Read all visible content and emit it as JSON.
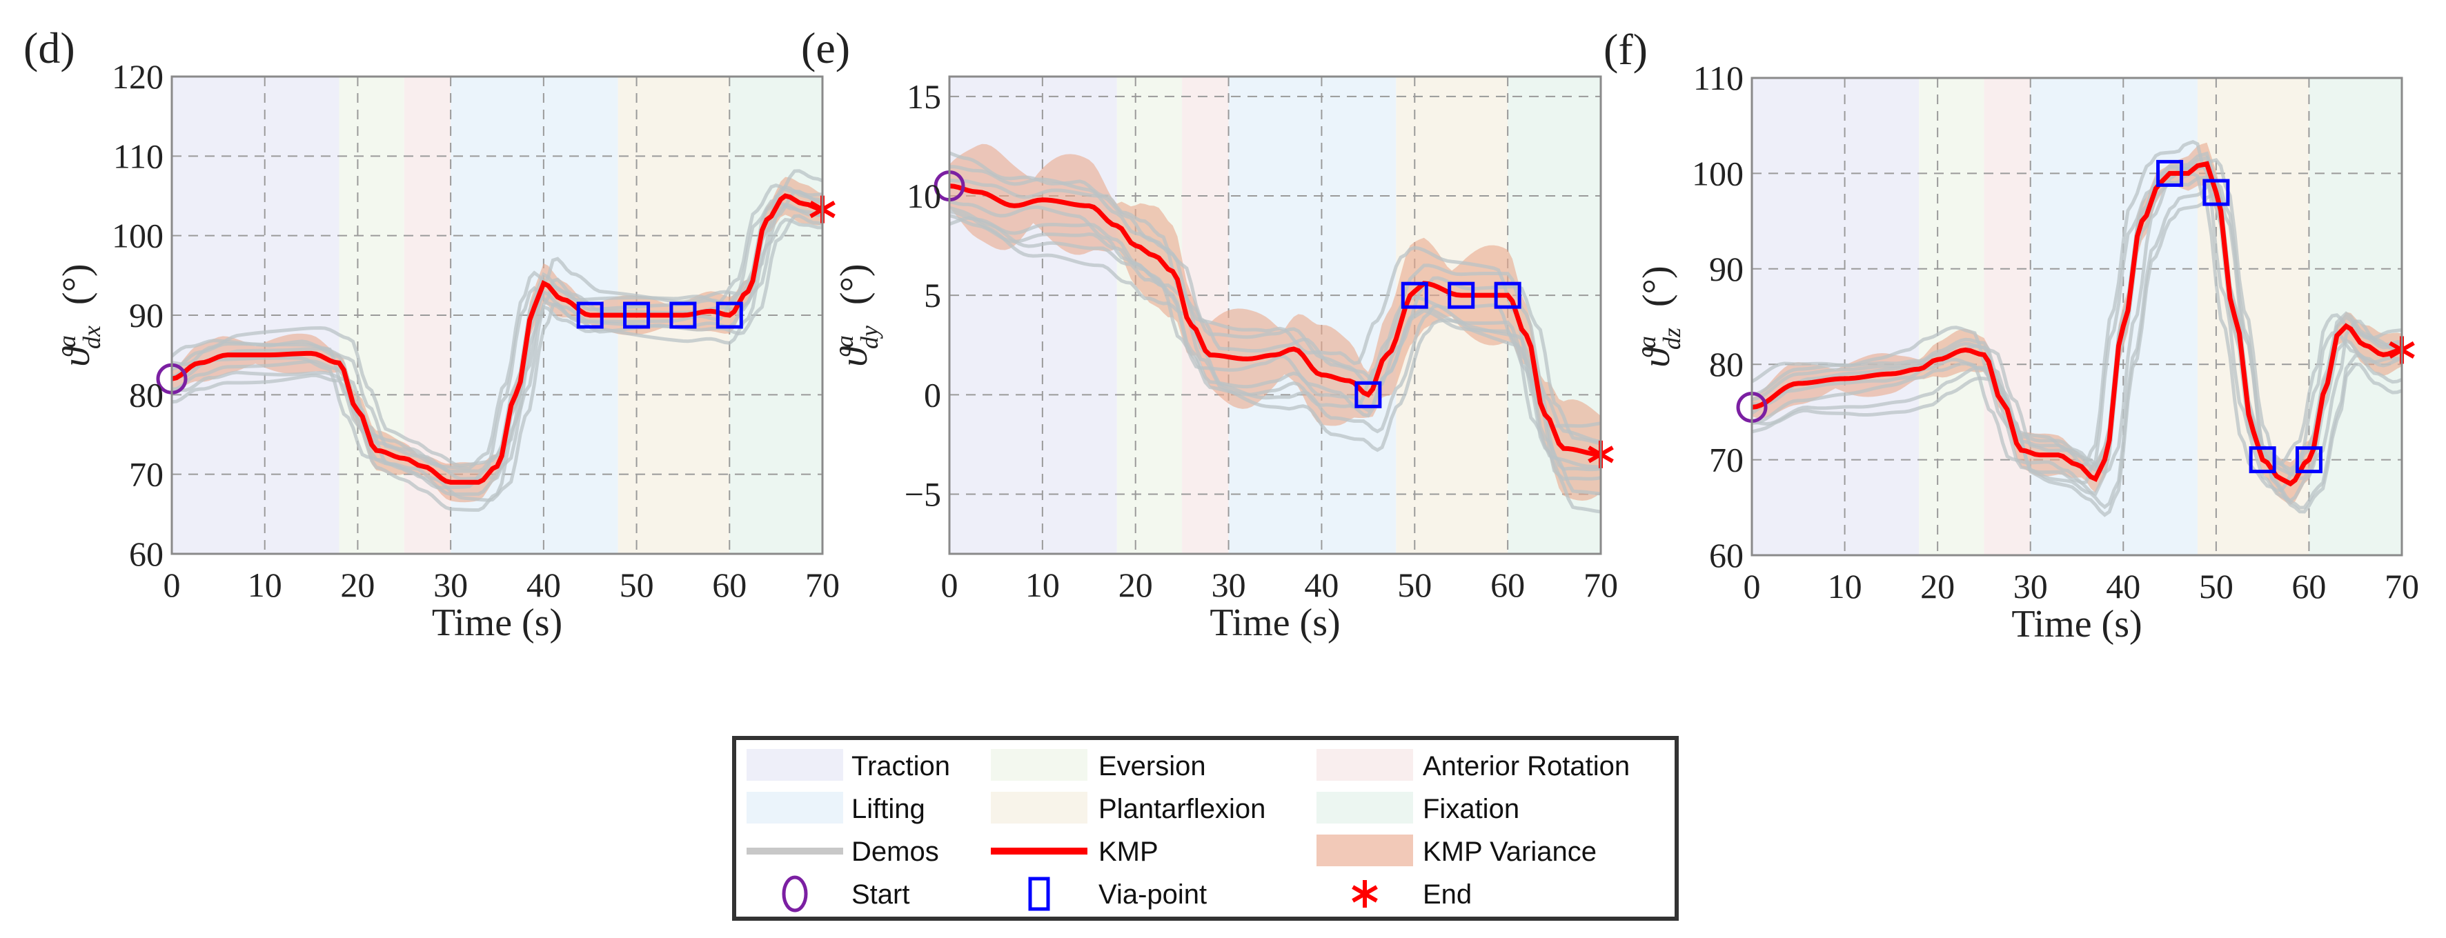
{
  "chart_data": [
    {
      "type": "line",
      "panel_label": "(d)",
      "xlabel": "Time (s)",
      "ylabel": {
        "symbol": "ϑ",
        "sup": "a",
        "sub": "dx",
        "unit": "(°)"
      },
      "xlim": [
        0,
        70
      ],
      "ylim": [
        60,
        120
      ],
      "xticks": [
        0,
        10,
        20,
        30,
        40,
        50,
        60,
        70
      ],
      "yticks": [
        60,
        70,
        80,
        90,
        100,
        110,
        120
      ],
      "grid": true,
      "kmp": [
        [
          0,
          82
        ],
        [
          3,
          84
        ],
        [
          6,
          85
        ],
        [
          10,
          85
        ],
        [
          15,
          85.2
        ],
        [
          18,
          84
        ],
        [
          20,
          78
        ],
        [
          22,
          73
        ],
        [
          25,
          72
        ],
        [
          27,
          71
        ],
        [
          30,
          69
        ],
        [
          33,
          69
        ],
        [
          35,
          71
        ],
        [
          37,
          80
        ],
        [
          39,
          91
        ],
        [
          40,
          94
        ],
        [
          42,
          92
        ],
        [
          45,
          90
        ],
        [
          50,
          90
        ],
        [
          55,
          90
        ],
        [
          58,
          90.5
        ],
        [
          60,
          90
        ],
        [
          62,
          93
        ],
        [
          64,
          102
        ],
        [
          66,
          105
        ],
        [
          68,
          104
        ],
        [
          70,
          103.3
        ]
      ],
      "variance": 1.8,
      "demo_offsets": [
        -2.5,
        -1.5,
        -0.8,
        0.6,
        1.4,
        2.2,
        3.2,
        -3.5
      ],
      "via_points": [
        [
          45,
          90
        ],
        [
          50,
          90
        ],
        [
          55,
          90
        ],
        [
          60,
          90
        ]
      ],
      "start": [
        0,
        82
      ],
      "end": [
        70,
        103.3
      ]
    },
    {
      "type": "line",
      "panel_label": "(e)",
      "xlabel": "Time (s)",
      "ylabel": {
        "symbol": "ϑ",
        "sup": "a",
        "sub": "dy",
        "unit": "(°)"
      },
      "xlim": [
        0,
        70
      ],
      "ylim": [
        -8,
        16
      ],
      "xticks": [
        0,
        10,
        20,
        30,
        40,
        50,
        60,
        70
      ],
      "yticks": [
        -5,
        0,
        5,
        10,
        15
      ],
      "grid": true,
      "kmp": [
        [
          0,
          10.5
        ],
        [
          3,
          10.2
        ],
        [
          7,
          9.5
        ],
        [
          10,
          9.8
        ],
        [
          15,
          9.5
        ],
        [
          18,
          8.5
        ],
        [
          20,
          7.5
        ],
        [
          22,
          7
        ],
        [
          24,
          6.2
        ],
        [
          26,
          3.5
        ],
        [
          28,
          2
        ],
        [
          32,
          1.8
        ],
        [
          35,
          2
        ],
        [
          37,
          2.3
        ],
        [
          40,
          1
        ],
        [
          43,
          0.7
        ],
        [
          45,
          0
        ],
        [
          47,
          2
        ],
        [
          50,
          5.2
        ],
        [
          51,
          5.6
        ],
        [
          55,
          5
        ],
        [
          60,
          5
        ],
        [
          62,
          3
        ],
        [
          64,
          -1
        ],
        [
          66,
          -2.7
        ],
        [
          70,
          -3
        ]
      ],
      "variance": 1.8,
      "demo_offsets": [
        -2.2,
        -1.4,
        -0.7,
        0.5,
        1.1,
        1.8,
        -3.0,
        -1.8
      ],
      "via_points": [
        [
          45,
          0
        ],
        [
          50,
          5
        ],
        [
          55,
          5
        ],
        [
          60,
          5
        ]
      ],
      "start": [
        0,
        10.5
      ],
      "end": [
        70,
        -3
      ]
    },
    {
      "type": "line",
      "panel_label": "(f)",
      "xlabel": "Time (s)",
      "ylabel": {
        "symbol": "ϑ",
        "sup": "a",
        "sub": "dz",
        "unit": "(°)"
      },
      "xlim": [
        0,
        70
      ],
      "ylim": [
        60,
        110
      ],
      "xticks": [
        0,
        10,
        20,
        30,
        40,
        50,
        60,
        70
      ],
      "yticks": [
        60,
        70,
        80,
        90,
        100,
        110
      ],
      "grid": true,
      "kmp": [
        [
          0,
          75.5
        ],
        [
          5,
          78
        ],
        [
          10,
          78.5
        ],
        [
          15,
          79
        ],
        [
          18,
          79.5
        ],
        [
          20,
          80.5
        ],
        [
          23,
          81.5
        ],
        [
          25,
          81
        ],
        [
          27,
          76
        ],
        [
          29,
          71
        ],
        [
          31,
          70.5
        ],
        [
          33,
          70.5
        ],
        [
          35,
          69.5
        ],
        [
          37,
          68
        ],
        [
          38,
          70
        ],
        [
          40,
          84
        ],
        [
          42,
          95
        ],
        [
          44,
          99
        ],
        [
          45,
          100
        ],
        [
          47,
          100
        ],
        [
          48,
          100.8
        ],
        [
          49,
          101
        ],
        [
          50,
          98
        ],
        [
          52,
          85
        ],
        [
          54,
          73
        ],
        [
          55,
          70
        ],
        [
          57,
          68
        ],
        [
          58,
          67.5
        ],
        [
          60,
          70
        ],
        [
          62,
          78
        ],
        [
          63,
          83
        ],
        [
          64,
          84
        ],
        [
          66,
          82
        ],
        [
          68,
          81
        ],
        [
          70,
          81.5
        ]
      ],
      "variance": 1.6,
      "demo_offsets": [
        -3,
        -1.8,
        -1,
        0.6,
        1.5,
        2.4,
        -4,
        1
      ],
      "via_points": [
        [
          45,
          100
        ],
        [
          50,
          98
        ],
        [
          55,
          70
        ],
        [
          60,
          70
        ]
      ],
      "start": [
        0,
        75.5
      ],
      "end": [
        70,
        81.5
      ]
    }
  ],
  "phases": [
    {
      "name": "Traction",
      "start": 0,
      "end": 18,
      "color": "#eeeff9"
    },
    {
      "name": "Eversion",
      "start": 18,
      "end": 25,
      "color": "#f3f8ef"
    },
    {
      "name": "Anterior Rotation",
      "start": 25,
      "end": 30,
      "color": "#f9eeee"
    },
    {
      "name": "Lifting",
      "start": 30,
      "end": 48,
      "color": "#ebf4fb"
    },
    {
      "name": "Plantarflexion",
      "start": 48,
      "end": 60,
      "color": "#f8f4ea"
    },
    {
      "name": "Fixation",
      "start": 60,
      "end": 70,
      "color": "#ecf6f1"
    }
  ],
  "colors": {
    "kmp": "#ff0000",
    "variance": "#e9a98c",
    "demos": "#b9c3c6",
    "start": "#7b1fa2",
    "via": "#0000ff",
    "end": "#ff0000"
  },
  "legend": {
    "items": [
      "Traction",
      "Eversion",
      "Anterior Rotation",
      "Lifting",
      "Plantarflexion",
      "Fixation",
      "Demos",
      "KMP",
      "KMP Variance",
      "Start",
      "Via-point",
      "End"
    ]
  }
}
